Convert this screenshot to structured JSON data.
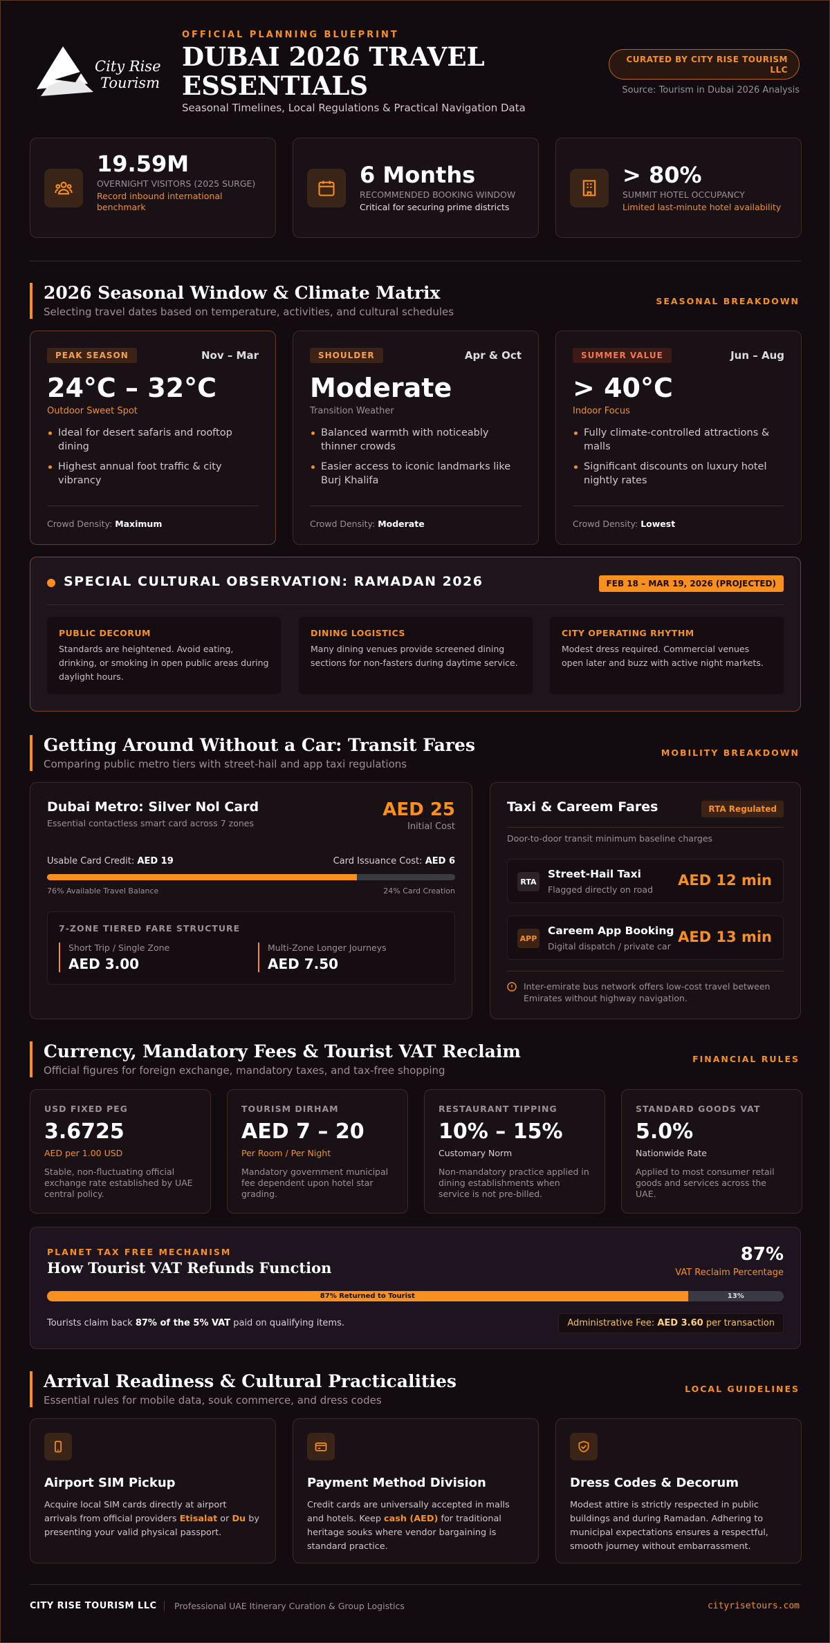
{
  "header": {
    "logo": {
      "line1": "City Rise",
      "line2": "Tourism"
    },
    "kicker": "OFFICIAL PLANNING BLUEPRINT",
    "title": "DUBAI 2026 TRAVEL ESSENTIALS",
    "subtitle": "Seasonal Timelines, Local Regulations & Practical Navigation Data",
    "badge": "CURATED BY CITY RISE TOURISM LLC",
    "source": "Source: Tourism in Dubai 2026 Analysis"
  },
  "stats": [
    {
      "value": "19.59M",
      "label": "OVERNIGHT VISITORS (2025 SURGE)",
      "note": "Record inbound international benchmark"
    },
    {
      "value": "6 Months",
      "label": "RECOMMENDED BOOKING WINDOW",
      "note": "Critical for securing prime districts"
    },
    {
      "value": "> 80%",
      "label": "SUMMIT HOTEL OCCUPANCY",
      "note": "Limited last-minute hotel availability"
    }
  ],
  "sections": [
    {
      "title": "2026 Seasonal Window & Climate Matrix",
      "subtitle": "Selecting travel dates based on temperature, activities, and cultural schedules",
      "tag": "SEASONAL BREAKDOWN"
    },
    {
      "title": "Getting Around Without a Car: Transit Fares",
      "subtitle": "Comparing public metro tiers with street-hail and app taxi regulations",
      "tag": "MOBILITY BREAKDOWN"
    },
    {
      "title": "Currency, Mandatory Fees & Tourist VAT Reclaim",
      "subtitle": "Official figures for foreign exchange, mandatory taxes, and tax-free shopping",
      "tag": "FINANCIAL RULES"
    },
    {
      "title": "Arrival Readiness & Cultural Practicalities",
      "subtitle": "Essential rules for mobile data, souk commerce, and dress codes",
      "tag": "LOCAL GUIDELINES"
    }
  ],
  "seasons": [
    {
      "tag": "PEAK SEASON",
      "months": "Nov – Mar",
      "temp": "24°C – 32°C",
      "temp_note": "Outdoor Sweet Spot",
      "bullets": [
        "Ideal for desert safaris and rooftop dining",
        "Highest annual foot traffic & city vibrancy"
      ],
      "density_label": "Crowd Density:",
      "density": "Maximum"
    },
    {
      "tag": "SHOULDER",
      "months": "Apr & Oct",
      "temp": "Moderate",
      "temp_note": "Transition Weather",
      "bullets": [
        "Balanced warmth with noticeably thinner crowds",
        "Easier access to iconic landmarks like Burj Khalifa"
      ],
      "density_label": "Crowd Density:",
      "density": "Moderate"
    },
    {
      "tag": "SUMMER VALUE",
      "months": "Jun – Aug",
      "temp": "> 40°C",
      "temp_note": "Indoor Focus",
      "bullets": [
        "Fully climate-controlled attractions & malls",
        "Significant discounts on luxury hotel nightly rates"
      ],
      "density_label": "Crowd Density:",
      "density": "Lowest"
    }
  ],
  "ramadan": {
    "title": "SPECIAL CULTURAL OBSERVATION: RAMADAN 2026",
    "dates": "FEB 18 – MAR 19, 2026 (PROJECTED)",
    "items": [
      {
        "title": "PUBLIC DECORUM",
        "text": "Standards are heightened. Avoid eating, drinking, or smoking in open public areas during daylight hours."
      },
      {
        "title": "DINING LOGISTICS",
        "text": "Many dining venues provide screened dining sections for non-fasters during daytime service."
      },
      {
        "title": "CITY OPERATING RHYTHM",
        "text": "Modest dress required. Commercial venues open later and buzz with active night markets."
      }
    ]
  },
  "metro": {
    "title": "Dubai Metro: Silver Nol Card",
    "subtitle": "Essential contactless smart card across 7 zones",
    "price": "AED 25",
    "price_note": "Initial Cost",
    "credit_label": "Usable Card Credit:",
    "credit": "AED 19",
    "cost_label": "Card Issuance Cost:",
    "cost": "AED 6",
    "balance": [
      {
        "value": 76,
        "label": "76% Available Travel Balance"
      },
      {
        "value": 24,
        "label": "24% Card Creation"
      }
    ],
    "fare_title": "7-ZONE TIERED FARE STRUCTURE",
    "tiers": [
      {
        "label": "Short Trip / Single Zone",
        "price": "AED 3.00"
      },
      {
        "label": "Multi-Zone Longer Journeys",
        "price": "AED 7.50"
      }
    ]
  },
  "taxi": {
    "title": "Taxi & Careem Fares",
    "tag": "RTA Regulated",
    "subtitle": "Door-to-door transit minimum baseline charges",
    "options": [
      {
        "code": "RTA",
        "name": "Street-Hail Taxi",
        "note": "Flagged directly on road",
        "price": "AED 12 min"
      },
      {
        "code": "APP",
        "name": "Careem App Booking",
        "note": "Digital dispatch / private car",
        "price": "AED 13 min"
      }
    ],
    "note": "Inter-emirate bus network offers low-cost travel between Emirates without highway navigation."
  },
  "finance": [
    {
      "label": "USD FIXED PEG",
      "value": "3.6725",
      "sub": "AED per 1.00 USD",
      "text": "Stable, non-fluctuating official exchange rate established by UAE central policy."
    },
    {
      "label": "TOURISM DIRHAM",
      "value": "AED 7 – 20",
      "sub": "Per Room / Per Night",
      "text": "Mandatory government municipal fee dependent upon hotel star grading."
    },
    {
      "label": "RESTAURANT TIPPING",
      "value": "10% – 15%",
      "sub": "Customary Norm",
      "text": "Non-mandatory practice applied in dining establishments when service is not pre-billed."
    },
    {
      "label": "STANDARD GOODS VAT",
      "value": "5.0%",
      "sub": "Nationwide Rate",
      "text": "Applied to most consumer retail goods and services across the UAE."
    }
  ],
  "vat": {
    "kicker": "PLANET TAX FREE MECHANISM",
    "title": "How Tourist VAT Refunds Function",
    "value": "87%",
    "value_label": "VAT Reclaim Percentage",
    "bar": [
      {
        "value": 87,
        "label": "87% Returned to Tourist"
      },
      {
        "value": 13,
        "label": "13%"
      }
    ],
    "claim": [
      "Tourists claim back ",
      "87% of the 5% VAT",
      " paid on qualifying items."
    ],
    "fee": [
      "Administrative Fee: ",
      "AED 3.60",
      " per transaction"
    ]
  },
  "arrival": [
    {
      "title": "Airport SIM Pickup",
      "text": [
        "Acquire local SIM cards directly at airport arrivals from official providers ",
        "Etisalat",
        " or ",
        "Du",
        " by presenting your valid physical passport."
      ]
    },
    {
      "title": "Payment Method Division",
      "text": [
        "Credit cards are universally accepted in malls and hotels. Keep ",
        "cash (AED)",
        " for traditional heritage souks where vendor bargaining is standard practice."
      ]
    },
    {
      "title": "Dress Codes & Decorum",
      "text": [
        "Modest attire is strictly respected in public buildings and during Ramadan. Adhering to municipal expectations ensures a respectful, smooth journey without embarrassment."
      ]
    }
  ],
  "footer": {
    "brand": "CITY RISE TOURISM LLC",
    "tagline": "Professional UAE Itinerary Curation & Group Logistics",
    "url": "cityrisetours.com"
  }
}
